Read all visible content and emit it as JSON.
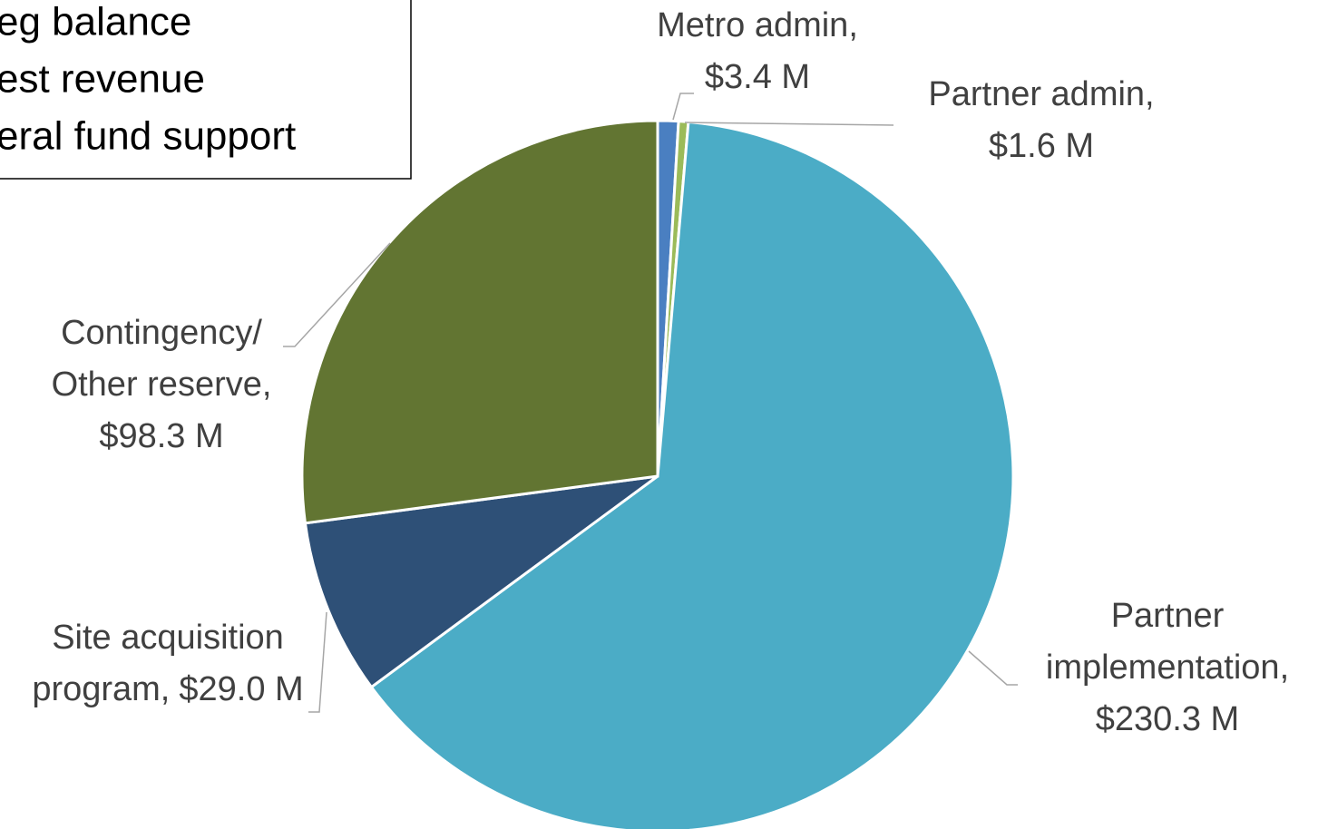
{
  "chart_data": {
    "type": "pie",
    "box_lines": [
      "eg balance",
      "est revenue",
      "eral fund support"
    ],
    "categories": [
      [
        "Metro admin,"
      ],
      [
        "Partner admin,"
      ],
      [
        "Partner",
        "implementation,"
      ],
      [
        "Site acquisition",
        "program,"
      ],
      [
        "Contingency/",
        "Other reserve,"
      ]
    ],
    "values": [
      3.4,
      1.6,
      230.3,
      29.0,
      98.3
    ],
    "value_labels": [
      "$3.4 M",
      "$1.6 M",
      "$230.3 M",
      "$29.0 M",
      "$98.3 M"
    ],
    "colors": [
      "#4a7fc1",
      "#9bbb59",
      "#4bacc6",
      "#2e5077",
      "#627532"
    ]
  }
}
